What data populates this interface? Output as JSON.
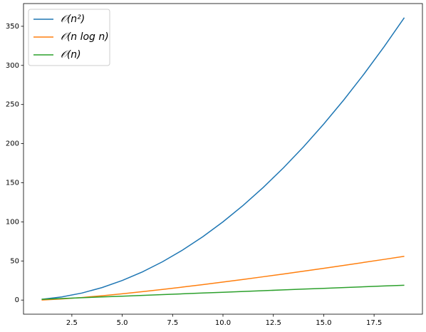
{
  "chart_data": {
    "type": "line",
    "x": [
      1,
      2,
      3,
      4,
      5,
      6,
      7,
      8,
      9,
      10,
      11,
      12,
      13,
      14,
      15,
      16,
      17,
      18,
      19
    ],
    "series": [
      {
        "name": "𝒪(n²)",
        "color": "#1f77b4",
        "values": [
          1,
          4,
          9,
          16,
          25,
          36,
          49,
          64,
          81,
          100,
          121,
          144,
          169,
          196,
          225,
          256,
          289,
          324,
          361
        ]
      },
      {
        "name": "𝒪(n log n)",
        "color": "#ff7f0e",
        "values": [
          0,
          1.386,
          3.296,
          5.545,
          8.047,
          10.751,
          13.621,
          16.636,
          19.775,
          23.026,
          26.377,
          29.819,
          33.344,
          36.947,
          40.621,
          44.361,
          48.165,
          52.027,
          55.944
        ]
      },
      {
        "name": "𝒪(n)",
        "color": "#2ca02c",
        "values": [
          1,
          2,
          3,
          4,
          5,
          6,
          7,
          8,
          9,
          10,
          11,
          12,
          13,
          14,
          15,
          16,
          17,
          18,
          19
        ]
      }
    ],
    "xlim": [
      0.1,
      19.9
    ],
    "ylim": [
      -18.05,
      379.05
    ],
    "xticks": [
      2.5,
      {
        "value": 5,
        "label": "5.0"
      },
      7.5,
      {
        "value": 10,
        "label": "10.0"
      },
      12.5,
      {
        "value": 15,
        "label": "15.0"
      },
      17.5
    ],
    "yticks": [
      0,
      50,
      100,
      150,
      200,
      250,
      300,
      350
    ],
    "grid": false,
    "legend": "upper-left"
  }
}
